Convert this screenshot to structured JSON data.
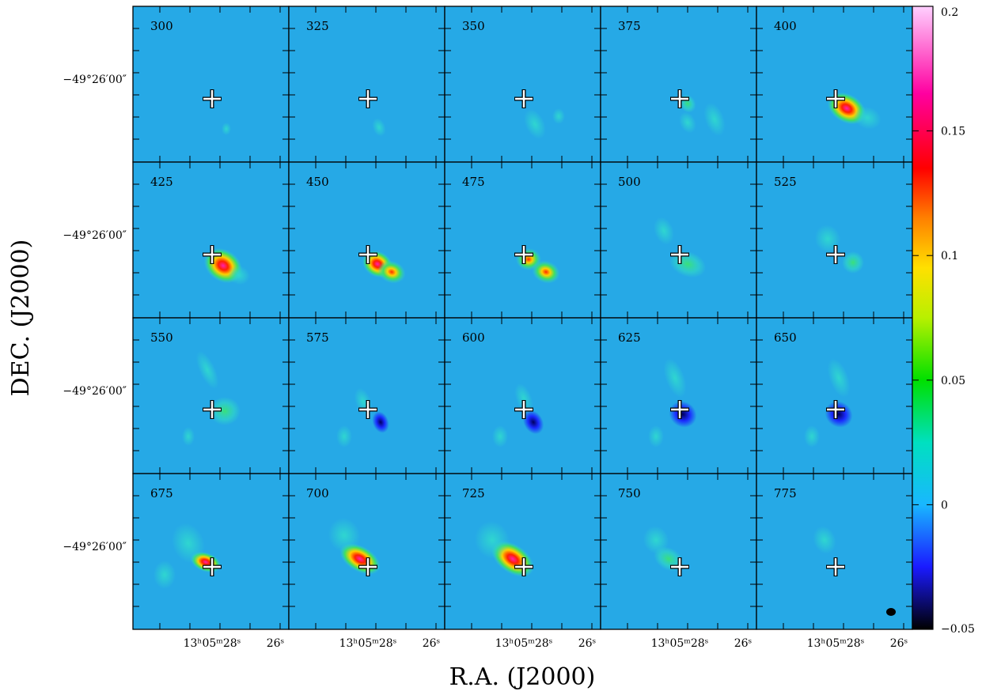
{
  "chart_data": {
    "type": "heatmap",
    "title": "",
    "xlabel": "R.A. (J2000)",
    "ylabel": "DEC. (J2000)",
    "grid": {
      "rows": 4,
      "cols": 5
    },
    "panels": [
      {
        "label": "300"
      },
      {
        "label": "325"
      },
      {
        "label": "350"
      },
      {
        "label": "375"
      },
      {
        "label": "400"
      },
      {
        "label": "425"
      },
      {
        "label": "450"
      },
      {
        "label": "475"
      },
      {
        "label": "500"
      },
      {
        "label": "525"
      },
      {
        "label": "550"
      },
      {
        "label": "575"
      },
      {
        "label": "600"
      },
      {
        "label": "625"
      },
      {
        "label": "650"
      },
      {
        "label": "675"
      },
      {
        "label": "700"
      },
      {
        "label": "725"
      },
      {
        "label": "750"
      },
      {
        "label": "775"
      }
    ],
    "y_tick_label": "−49°26′00″",
    "x_tick_labels": [
      "13ʰ05ᵐ28ˢ",
      "26ˢ"
    ],
    "colorbar": {
      "min": -0.05,
      "max": 0.2,
      "ticks": [
        {
          "value": 0.2,
          "label": "0.2"
        },
        {
          "value": 0.15,
          "label": "0.15"
        },
        {
          "value": 0.1,
          "label": "0.1"
        },
        {
          "value": 0.05,
          "label": "0.05"
        },
        {
          "value": 0,
          "label": "0"
        },
        {
          "value": -0.05,
          "label": "−0.05"
        }
      ],
      "colormap": [
        "#000000",
        "#1a1aff",
        "#19b7ff",
        "#00e0c0",
        "#00e000",
        "#b8f000",
        "#ffe000",
        "#ff8000",
        "#ff0000",
        "#ff00a0",
        "#ffd0ff"
      ]
    },
    "background_color": "#26a9e6",
    "marker": "plus",
    "beam_marker": "ellipse"
  }
}
